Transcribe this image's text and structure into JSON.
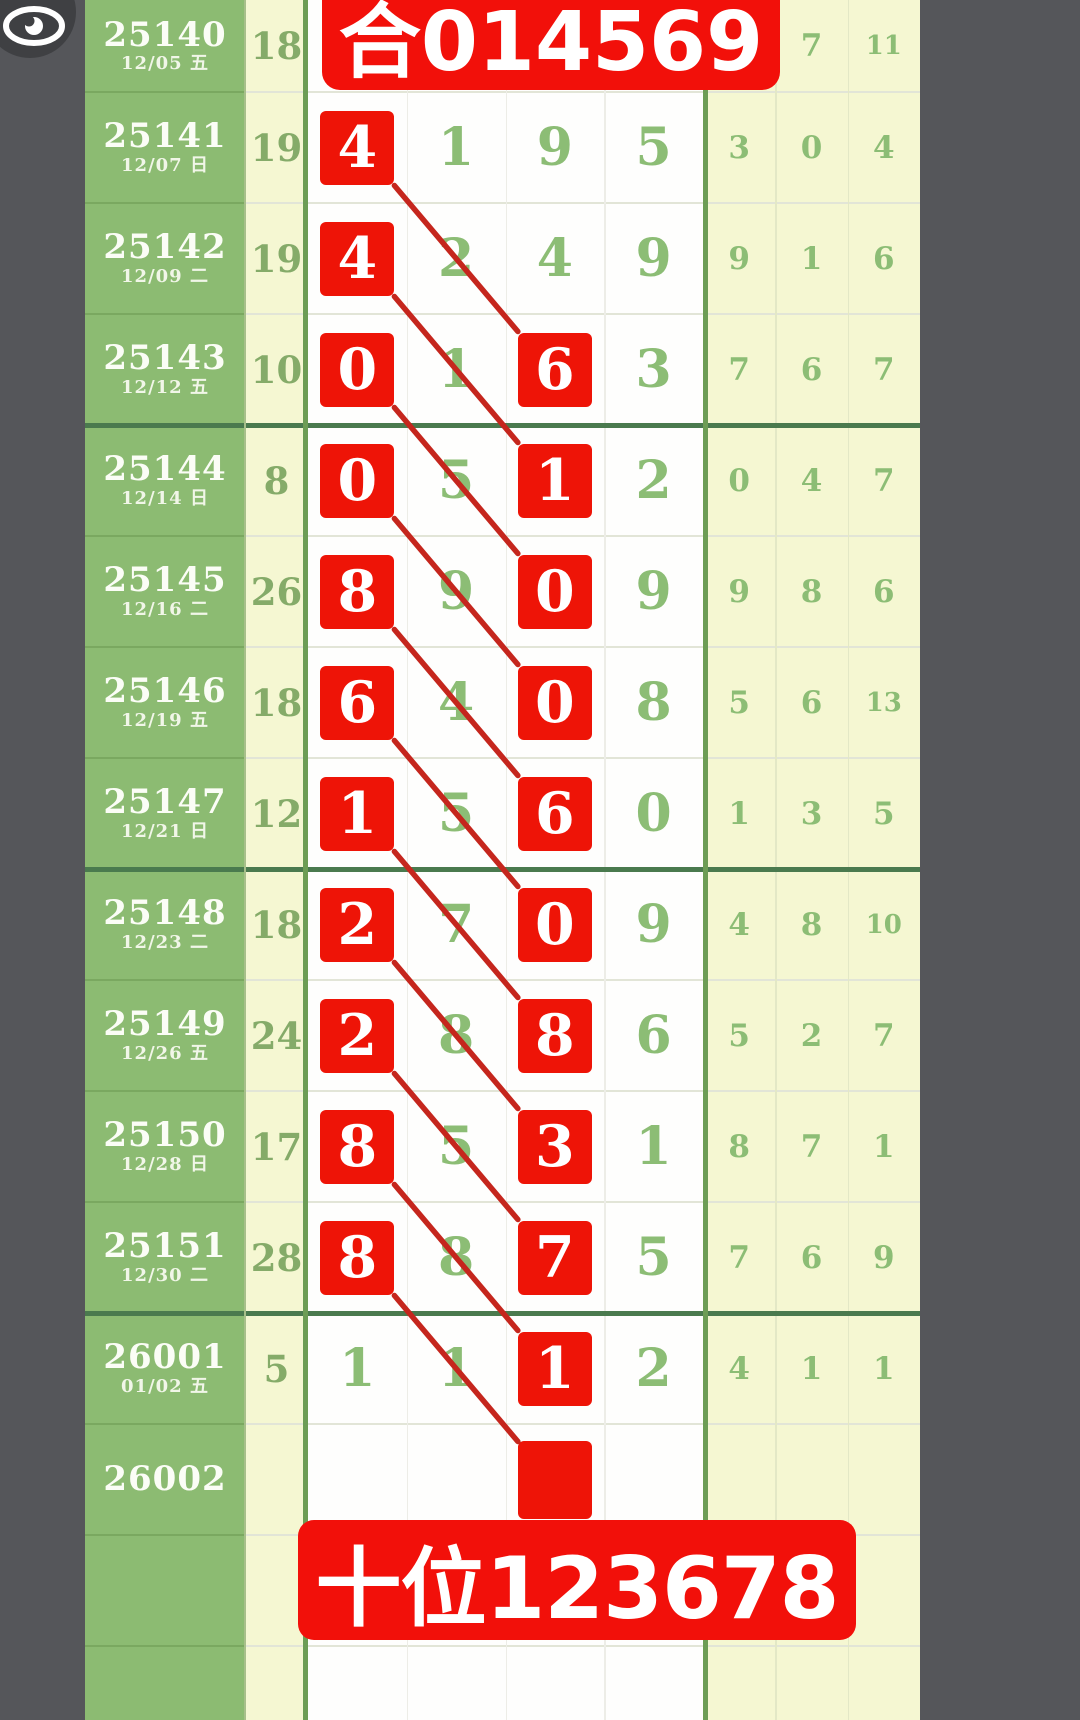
{
  "app": {
    "kind": "lottery-trend-chart"
  },
  "banners": {
    "top": {
      "text": "合014569",
      "bg": "#f2100a",
      "text_color": "#ffffff"
    },
    "bottom": {
      "text": "十位123678",
      "bg": "#f2100a",
      "text_color": "#ffffff"
    }
  },
  "icons": {
    "eye": "eye-icon"
  },
  "colors": {
    "side_gray": "#55565a",
    "icon_bg": "#3f4043",
    "issue_col_bg": "#8cbb72",
    "value_col_bg": "#f5f7d2",
    "digit_area_bg": "#fefefd",
    "right_col_bg": "#f5f7d2",
    "red_box": "#ee1407",
    "banner_red": "#f2100a",
    "diag_line": "#c5261d",
    "green_digit": "#8cbd75",
    "thick_sep": "#4a7a4e",
    "green_vline": "#6d9d55",
    "thin_sep_light": "#e2e5d7",
    "thin_sep_green": "#7aa860",
    "yellow_vline": "#e3e8c6",
    "white_vline": "#ededE7"
  },
  "chart_data": {
    "type": "table",
    "columns": [
      "issue",
      "date",
      "value",
      "d1",
      "d2",
      "d3",
      "d4",
      "r1",
      "r2",
      "r3"
    ],
    "rows": [
      {
        "issue": "25140",
        "date": "12/05 五",
        "value": "18",
        "digits": [
          "",
          "",
          "",
          ""
        ],
        "boxed": [
          false,
          false,
          false,
          false
        ],
        "right": [
          "",
          "7",
          "11"
        ]
      },
      {
        "issue": "25141",
        "date": "12/07 日",
        "value": "19",
        "digits": [
          "4",
          "1",
          "9",
          "5"
        ],
        "boxed": [
          true,
          false,
          false,
          false
        ],
        "right": [
          "3",
          "0",
          "4"
        ]
      },
      {
        "issue": "25142",
        "date": "12/09 二",
        "value": "19",
        "digits": [
          "4",
          "2",
          "4",
          "9"
        ],
        "boxed": [
          true,
          false,
          false,
          false
        ],
        "right": [
          "9",
          "1",
          "6"
        ]
      },
      {
        "issue": "25143",
        "date": "12/12 五",
        "value": "10",
        "digits": [
          "0",
          "1",
          "6",
          "3"
        ],
        "boxed": [
          true,
          false,
          true,
          false
        ],
        "right": [
          "7",
          "6",
          "7"
        ]
      },
      {
        "issue": "25144",
        "date": "12/14 日",
        "value": "8",
        "digits": [
          "0",
          "5",
          "1",
          "2"
        ],
        "boxed": [
          true,
          false,
          true,
          false
        ],
        "right": [
          "0",
          "4",
          "7"
        ]
      },
      {
        "issue": "25145",
        "date": "12/16 二",
        "value": "26",
        "digits": [
          "8",
          "9",
          "0",
          "9"
        ],
        "boxed": [
          true,
          false,
          true,
          false
        ],
        "right": [
          "9",
          "8",
          "6"
        ]
      },
      {
        "issue": "25146",
        "date": "12/19 五",
        "value": "18",
        "digits": [
          "6",
          "4",
          "0",
          "8"
        ],
        "boxed": [
          true,
          false,
          true,
          false
        ],
        "right": [
          "5",
          "6",
          "13"
        ]
      },
      {
        "issue": "25147",
        "date": "12/21 日",
        "value": "12",
        "digits": [
          "1",
          "5",
          "6",
          "0"
        ],
        "boxed": [
          true,
          false,
          true,
          false
        ],
        "right": [
          "1",
          "3",
          "5"
        ]
      },
      {
        "issue": "25148",
        "date": "12/23 二",
        "value": "18",
        "digits": [
          "2",
          "7",
          "0",
          "9"
        ],
        "boxed": [
          true,
          false,
          true,
          false
        ],
        "right": [
          "4",
          "8",
          "10"
        ]
      },
      {
        "issue": "25149",
        "date": "12/26 五",
        "value": "24",
        "digits": [
          "2",
          "8",
          "8",
          "6"
        ],
        "boxed": [
          true,
          false,
          true,
          false
        ],
        "right": [
          "5",
          "2",
          "7"
        ]
      },
      {
        "issue": "25150",
        "date": "12/28 日",
        "value": "17",
        "digits": [
          "8",
          "5",
          "3",
          "1"
        ],
        "boxed": [
          true,
          false,
          true,
          false
        ],
        "right": [
          "8",
          "7",
          "1"
        ]
      },
      {
        "issue": "25151",
        "date": "12/30 二",
        "value": "28",
        "digits": [
          "8",
          "8",
          "7",
          "5"
        ],
        "boxed": [
          true,
          false,
          true,
          false
        ],
        "right": [
          "7",
          "6",
          "9"
        ]
      },
      {
        "issue": "26001",
        "date": "01/02 五",
        "value": "5",
        "digits": [
          "1",
          "1",
          "1",
          "2"
        ],
        "boxed": [
          false,
          false,
          true,
          false
        ],
        "right": [
          "4",
          "1",
          "1"
        ]
      },
      {
        "issue": "26002",
        "date": "",
        "value": "",
        "digits": [
          "",
          "",
          "",
          ""
        ],
        "boxed": [
          false,
          false,
          true,
          false
        ],
        "right": [
          "",
          "",
          ""
        ]
      },
      {
        "issue": "",
        "date": "",
        "value": "",
        "digits": [
          "",
          "",
          "",
          ""
        ],
        "boxed": [
          false,
          false,
          false,
          false
        ],
        "right": [
          "",
          "",
          ""
        ]
      },
      {
        "issue": "",
        "date": "",
        "value": "",
        "digits": [
          "",
          "",
          "",
          ""
        ],
        "boxed": [
          false,
          false,
          false,
          false
        ],
        "right": [
          "",
          "",
          ""
        ]
      }
    ],
    "thick_separators_after_row": [
      3,
      7,
      11
    ],
    "diagonal_links": [
      [
        1,
        3
      ],
      [
        2,
        4
      ],
      [
        3,
        5
      ],
      [
        4,
        6
      ],
      [
        5,
        7
      ],
      [
        6,
        8
      ],
      [
        7,
        9
      ],
      [
        8,
        10
      ],
      [
        9,
        11
      ],
      [
        10,
        12
      ],
      [
        11,
        13
      ]
    ],
    "notes": "diagonal red lines run from the column-1 red box of row a to the column-3 red box of row b; 26002 has an empty red box"
  }
}
